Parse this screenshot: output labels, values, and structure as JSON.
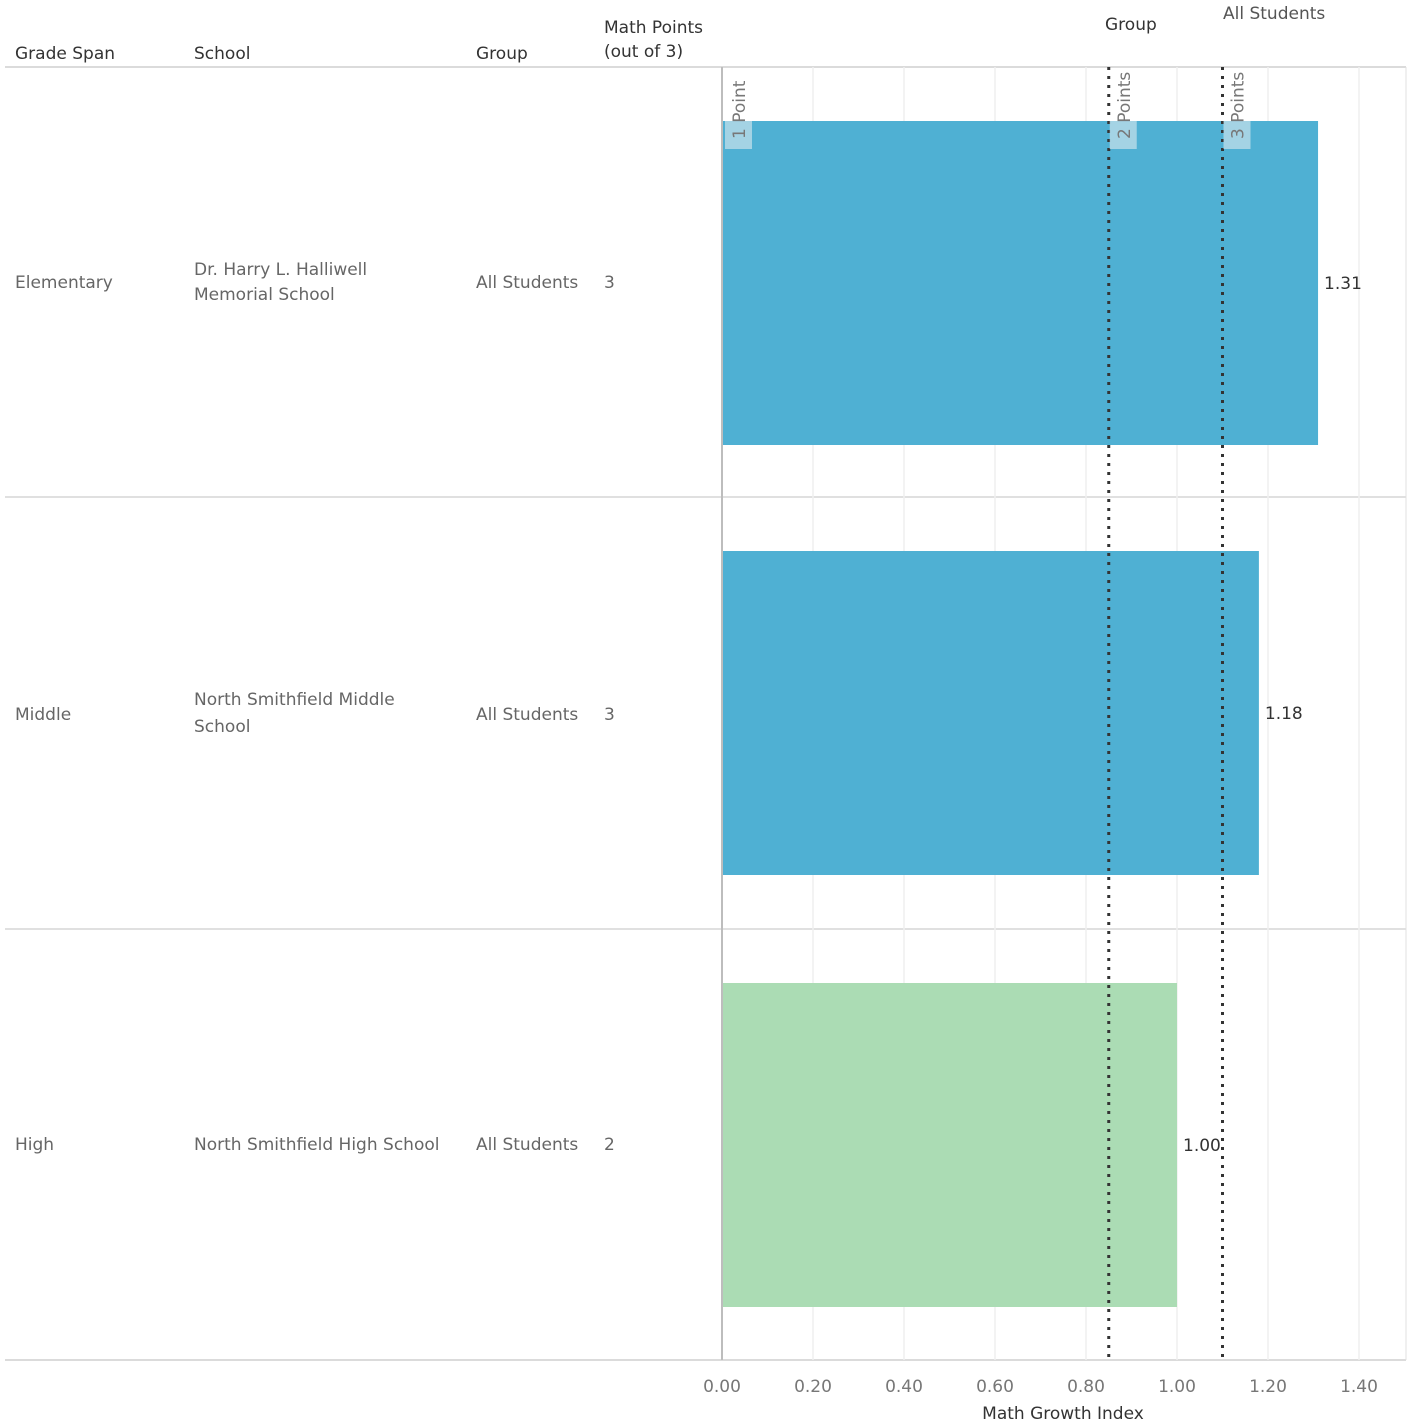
{
  "headers": {
    "grade_span": "Grade Span",
    "school": "School",
    "group": "Group",
    "math_points": "Math Points",
    "math_points_sub": "(out of 3)"
  },
  "legend": {
    "group_title": "Group",
    "group_value": "All Students"
  },
  "rows": [
    {
      "grade_span": "Elementary",
      "school_line1": "Dr. Harry L. Halliwell",
      "school_line2": "Memorial School",
      "group": "All Students",
      "points": "3"
    },
    {
      "grade_span": "Middle",
      "school_line1": "North Smithfield Middle",
      "school_line2": "School",
      "group": "All Students",
      "points": "3"
    },
    {
      "grade_span": "High",
      "school_line1": "North Smithfield High School",
      "school_line2": "",
      "group": "All Students",
      "points": "2"
    }
  ],
  "chart_data": {
    "type": "bar",
    "orientation": "horizontal",
    "categories": [
      "Elementary",
      "Middle",
      "High"
    ],
    "values": [
      1.31,
      1.18,
      1.0
    ],
    "value_labels": [
      "1.31",
      "1.18",
      "1.00"
    ],
    "xlabel": "Math Growth Index",
    "xlim": [
      0,
      1.5
    ],
    "xticks": [
      0,
      0.2,
      0.4,
      0.6,
      0.8,
      1.0,
      1.2,
      1.4
    ],
    "xtick_labels": [
      "0.00",
      "0.20",
      "0.40",
      "0.60",
      "0.80",
      "1.00",
      "1.20",
      "1.40"
    ],
    "bar_colors": [
      "#4fb0d3",
      "#4fb0d3",
      "#abdcb4"
    ],
    "grid": true,
    "reference_lines": [
      {
        "label": "1 Point",
        "value": 0.0
      },
      {
        "label": "2 Points",
        "value": 0.85
      },
      {
        "label": "3 Points",
        "value": 1.1
      }
    ]
  }
}
